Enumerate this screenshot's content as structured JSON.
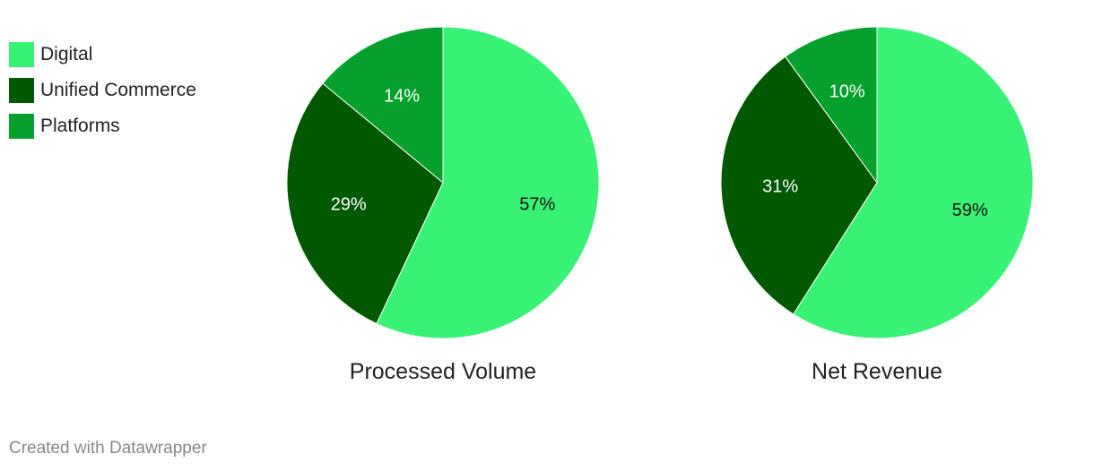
{
  "chart_data": [
    {
      "type": "pie",
      "title": "Processed Volume",
      "categories": [
        "Digital",
        "Unified Commerce",
        "Platforms"
      ],
      "values": [
        57,
        29,
        14
      ],
      "labels": [
        "57%",
        "29%",
        "14%"
      ]
    },
    {
      "type": "pie",
      "title": "Net Revenue",
      "categories": [
        "Digital",
        "Unified Commerce",
        "Platforms"
      ],
      "values": [
        59,
        31,
        10
      ],
      "labels": [
        "59%",
        "31%",
        "10%"
      ]
    }
  ],
  "legend": {
    "placement": "top-left",
    "items": [
      {
        "label": "Digital",
        "color": "#38f275"
      },
      {
        "label": "Unified Commerce",
        "color": "#005800"
      },
      {
        "label": "Platforms",
        "color": "#05a12c"
      }
    ]
  },
  "label_colors": [
    "#111111",
    "#ffffff",
    "#ffffff"
  ],
  "footer": "Created with Datawrapper"
}
